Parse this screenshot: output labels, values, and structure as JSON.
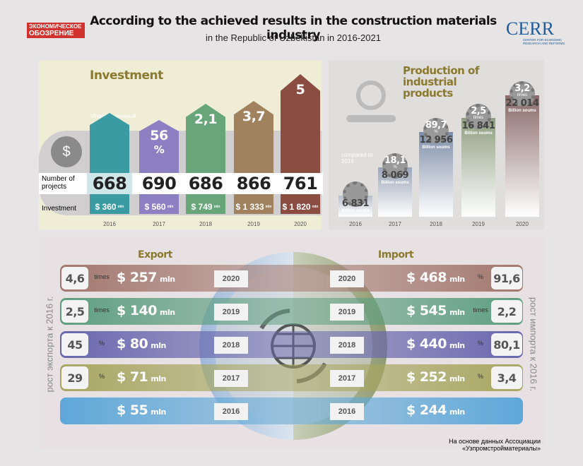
{
  "brand": {
    "line1": "ЭКОНОМИЧЕСКОЕ",
    "line2": "ОБОЗРЕНИЕ"
  },
  "header": {
    "title": "According to the achieved results in the construction materials industry",
    "subtitle": "in the Republic of Uzbekistan in 2016-2021"
  },
  "logo": {
    "name": "CERR",
    "tagline": "CENTER FOR ECONOMIC RESEARCH AND REFORMS"
  },
  "investment": {
    "title": "Investment",
    "growth_note": "Инвестиционный рост к 2016 г.",
    "projects_label": "Number of projects",
    "amount_label": "Investment",
    "unit": "mln",
    "columns": [
      {
        "year": "2016",
        "projects": 668,
        "amount": "$ 360"
      },
      {
        "year": "2017",
        "growth": "56",
        "growth_unit": "%",
        "projects": 690,
        "amount": "$ 560"
      },
      {
        "year": "2018",
        "growth": "2,1",
        "projects": 686,
        "amount": "$ 749"
      },
      {
        "year": "2019",
        "growth": "3,7",
        "projects": 866,
        "amount": "$ 1 333"
      },
      {
        "year": "2020",
        "growth": "5",
        "projects": 761,
        "amount": "$ 1 820"
      }
    ]
  },
  "production": {
    "title": "Production of industrial products",
    "compare_note": "compared to 2016",
    "unit": "Billion soums",
    "columns": [
      {
        "year": "2016",
        "value": "6 831"
      },
      {
        "year": "2017",
        "growth": "18,1",
        "growth_unit": "%",
        "value": "8 069"
      },
      {
        "year": "2018",
        "growth": "89,7",
        "growth_unit": "%",
        "value": "12 956"
      },
      {
        "year": "2019",
        "growth": "2,5",
        "growth_unit": "times",
        "value": "16 841"
      },
      {
        "year": "2020",
        "growth": "3,2",
        "growth_unit": "times",
        "value": "22 014"
      }
    ]
  },
  "trade": {
    "export_title": "Export",
    "import_title": "Import",
    "export_side": "рост экспорта к 2016 г.",
    "import_side": "рост импорта к 2016 г.",
    "unit": "mln",
    "rows": [
      {
        "year": "2020",
        "export_growth": "4,6",
        "export_growth_unit": "times",
        "export": "$ 257",
        "import": "$ 468",
        "import_growth_unit": "%",
        "import_growth": "91,6"
      },
      {
        "year": "2019",
        "export_growth": "2,5",
        "export_growth_unit": "times",
        "export": "$ 140",
        "import": "$ 545",
        "import_growth_unit": "times",
        "import_growth": "2,2"
      },
      {
        "year": "2018",
        "export_growth": "45",
        "export_growth_unit": "%",
        "export": "$ 80",
        "import": "$ 440",
        "import_growth_unit": "%",
        "import_growth": "80,1"
      },
      {
        "year": "2017",
        "export_growth": "29",
        "export_growth_unit": "%",
        "export": "$ 71",
        "import": "$ 252",
        "import_growth_unit": "%",
        "import_growth": "3,4"
      },
      {
        "year": "2016",
        "export": "$ 55",
        "import": "$ 244"
      }
    ]
  },
  "footer": {
    "source": "На основе данных Ассоциации «Узпромстройматериалы»"
  }
}
